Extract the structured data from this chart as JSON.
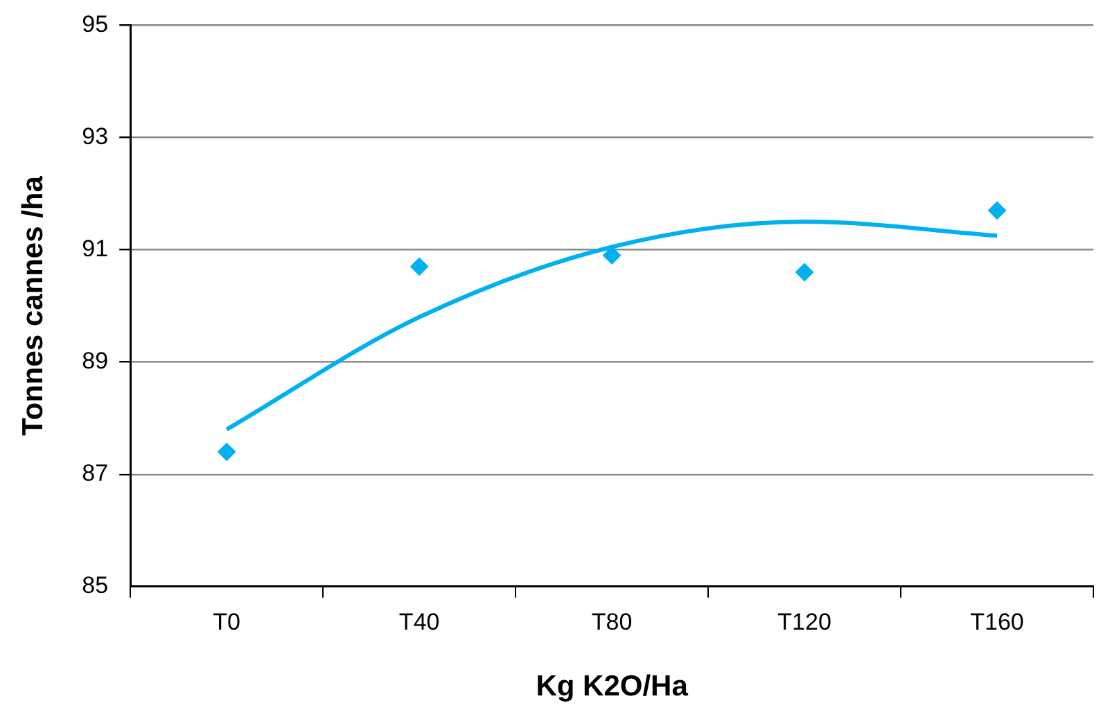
{
  "chart_data": {
    "type": "scatter",
    "xlabel": "Kg K2O/Ha",
    "ylabel": "Tonnes cannes /ha",
    "categories": [
      "T0",
      "T40",
      "T80",
      "T120",
      "T160"
    ],
    "series": [
      {
        "color": "#00b0f0",
        "marker": "diamond",
        "values": [
          87.4,
          90.7,
          90.9,
          90.6,
          91.7
        ]
      },
      {
        "type": "line",
        "color": "#00b0f0",
        "marker": "none",
        "values": [
          87.8,
          89.8,
          91.05,
          91.5,
          91.25
        ]
      }
    ],
    "ylim": [
      85,
      95
    ],
    "yticks": [
      85,
      87,
      89,
      91,
      93,
      95
    ],
    "grid": "y",
    "legend": false
  }
}
